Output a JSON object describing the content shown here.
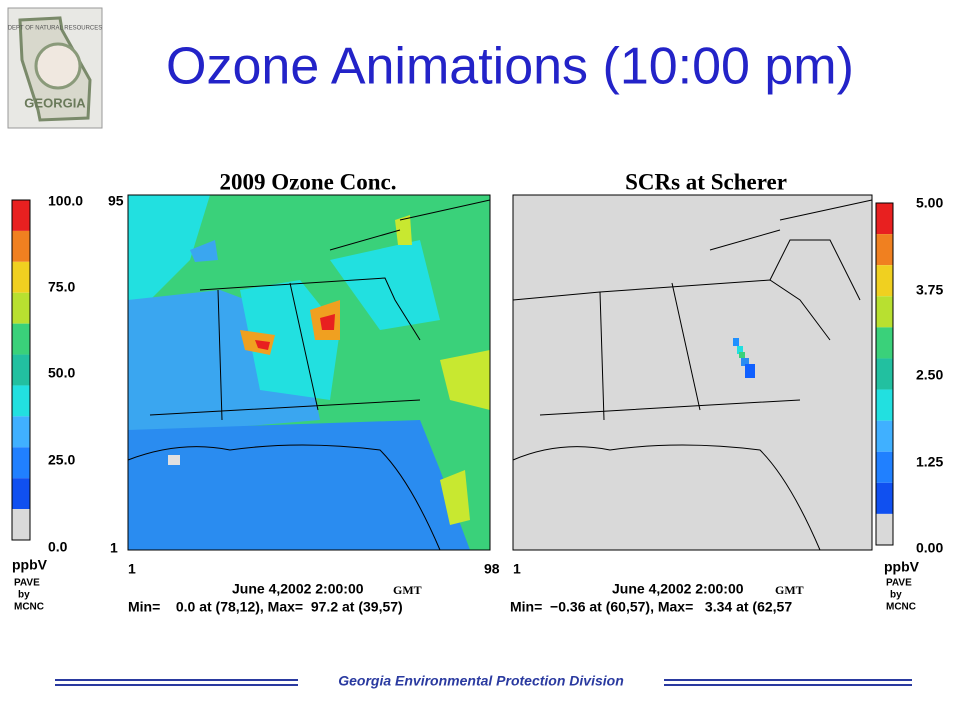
{
  "header": {
    "title": "Ozone Animations (10:00 pm)"
  },
  "logo": {
    "top": "DEPT OF NATURAL RESOURCES",
    "bottom": "GEORGIA"
  },
  "panels": [
    {
      "title": "2009 Ozone Conc.",
      "scale": [
        "100.0",
        "75.0",
        "50.0",
        "25.0",
        "0.0"
      ],
      "unit": "ppbV",
      "credit": [
        "PAVE",
        "by",
        "MCNC"
      ],
      "y_top": "95",
      "y_bottom": "1",
      "x_left": "1",
      "x_right": "98",
      "date": "June 4,2002 2:00:00",
      "zone": "GMT",
      "stats": "Min=    0.0 at (78,12), Max=  97.2 at (39,57)"
    },
    {
      "title": "SCRs at Scherer",
      "scale": [
        "5.00",
        "3.75",
        "2.50",
        "1.25",
        "0.00"
      ],
      "unit": "ppbV",
      "credit": [
        "PAVE",
        "by",
        "MCNC"
      ],
      "x_left": "1",
      "date": "June 4,2002 2:00:00",
      "zone": "GMT",
      "stats": "Min=  −0.36 at (60,57), Max=   3.34 at (62,57"
    }
  ],
  "footer": "Georgia Environmental Protection Division"
}
